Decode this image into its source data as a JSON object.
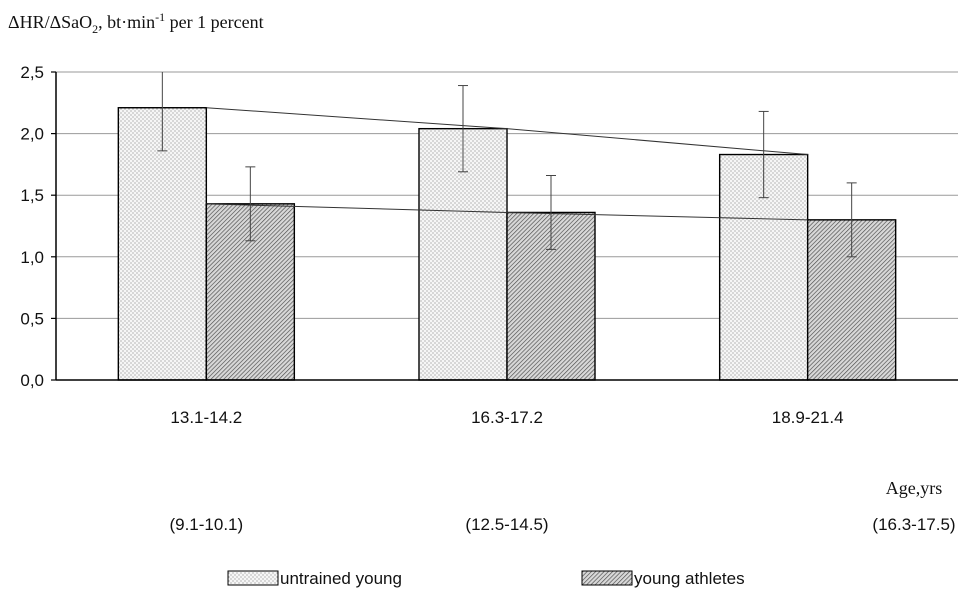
{
  "chart_data": {
    "type": "bar",
    "ylabel_parts": [
      "ΔHR/ΔSaO",
      "2",
      ", bt·min",
      "-1",
      " per 1 percent"
    ],
    "xlabel": "Age,yrs",
    "ylim": [
      0,
      2.5
    ],
    "yticks": [
      "0,0",
      "0,5",
      "1,0",
      "1,5",
      "2,0",
      "2,5"
    ],
    "ytick_values": [
      0,
      0.5,
      1.0,
      1.5,
      2.0,
      2.5
    ],
    "categories": [
      "13.1-14.2",
      "16.3-17.2",
      "18.9-21.4"
    ],
    "secondary_categories": [
      "(9.1-10.1)",
      "(12.5-14.5)",
      "(16.3-17.5)"
    ],
    "grid": true,
    "legend_position": "bottom",
    "series": [
      {
        "name": "untrained young",
        "values": [
          2.21,
          2.04,
          1.83
        ],
        "errors": [
          0.35,
          0.35,
          0.35
        ],
        "pattern": "dots",
        "color": "#f2f2f2"
      },
      {
        "name": "young athletes",
        "values": [
          1.43,
          1.36,
          1.3
        ],
        "errors": [
          0.3,
          0.3,
          0.3
        ],
        "pattern": "hatch",
        "color": "#bfbfbf"
      }
    ]
  }
}
